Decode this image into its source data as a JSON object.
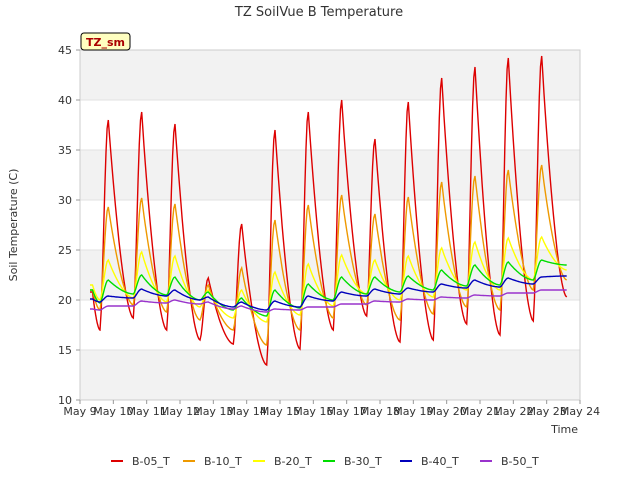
{
  "chart_data": {
    "type": "line",
    "title": "TZ SoilVue B Temperature",
    "xlabel": "Time",
    "ylabel": "Soil Temperature (C)",
    "badge": "TZ_sm",
    "xlim": [
      9,
      24
    ],
    "ylim": [
      10,
      45
    ],
    "x_ticks": [
      9,
      10,
      11,
      12,
      13,
      14,
      15,
      16,
      17,
      18,
      19,
      20,
      21,
      22,
      23,
      24
    ],
    "x_tick_labels": [
      "May 9",
      "May 10",
      "May 11",
      "May 12",
      "May 13",
      "May 14",
      "May 15",
      "May 16",
      "May 17",
      "May 18",
      "May 19",
      "May 20",
      "May 21",
      "May 22",
      "May 23",
      "May 24"
    ],
    "y_ticks": [
      10,
      15,
      20,
      25,
      30,
      35,
      40,
      45
    ],
    "y_tick_labels": [
      "10",
      "15",
      "20",
      "25",
      "30",
      "35",
      "40",
      "45"
    ],
    "grid_bands": true,
    "legend_position": "bottom",
    "series": [
      {
        "name": "B-05_T",
        "color": "#dd0000",
        "days": [
          {
            "start": 9.3,
            "min": 20.8,
            "max": 20.8
          },
          {
            "start": 9.6,
            "min": 17.0,
            "max": 38.0
          },
          {
            "start": 10.6,
            "min": 18.2,
            "max": 38.8
          },
          {
            "start": 11.6,
            "min": 17.0,
            "max": 37.6
          },
          {
            "start": 12.6,
            "min": 16.0,
            "max": 22.2
          },
          {
            "start": 13.6,
            "min": 15.6,
            "max": 27.6
          },
          {
            "start": 14.6,
            "min": 13.5,
            "max": 37.0
          },
          {
            "start": 15.6,
            "min": 15.1,
            "max": 38.8
          },
          {
            "start": 16.6,
            "min": 17.0,
            "max": 40.0
          },
          {
            "start": 17.6,
            "min": 18.4,
            "max": 36.1
          },
          {
            "start": 18.6,
            "min": 15.8,
            "max": 39.8
          },
          {
            "start": 19.6,
            "min": 16.0,
            "max": 42.2
          },
          {
            "start": 20.6,
            "min": 17.6,
            "max": 43.3
          },
          {
            "start": 21.6,
            "min": 16.5,
            "max": 44.2
          },
          {
            "start": 22.6,
            "min": 17.9,
            "max": 44.4
          },
          {
            "start": 23.6,
            "min": 20.3,
            "max": 20.3
          }
        ]
      },
      {
        "name": "B-10_T",
        "color": "#ee9900",
        "days": [
          {
            "start": 9.3,
            "min": 21.0,
            "max": 21.0
          },
          {
            "start": 9.6,
            "min": 19.0,
            "max": 29.3
          },
          {
            "start": 10.6,
            "min": 19.5,
            "max": 30.2
          },
          {
            "start": 11.6,
            "min": 18.8,
            "max": 29.6
          },
          {
            "start": 12.6,
            "min": 18.0,
            "max": 21.5
          },
          {
            "start": 13.6,
            "min": 17.0,
            "max": 23.2
          },
          {
            "start": 14.6,
            "min": 15.5,
            "max": 28.0
          },
          {
            "start": 15.6,
            "min": 17.0,
            "max": 29.5
          },
          {
            "start": 16.6,
            "min": 18.2,
            "max": 30.5
          },
          {
            "start": 17.6,
            "min": 19.5,
            "max": 28.6
          },
          {
            "start": 18.6,
            "min": 18.0,
            "max": 30.3
          },
          {
            "start": 19.6,
            "min": 18.6,
            "max": 31.8
          },
          {
            "start": 20.6,
            "min": 19.3,
            "max": 32.4
          },
          {
            "start": 21.6,
            "min": 19.0,
            "max": 33.0
          },
          {
            "start": 22.6,
            "min": 21.0,
            "max": 33.5
          },
          {
            "start": 23.6,
            "min": 22.0,
            "max": 22.0
          }
        ]
      },
      {
        "name": "B-20_T",
        "color": "#ffff00",
        "days": [
          {
            "start": 9.3,
            "min": 21.5,
            "max": 21.5
          },
          {
            "start": 9.6,
            "min": 20.0,
            "max": 24.0
          },
          {
            "start": 10.6,
            "min": 20.2,
            "max": 24.8
          },
          {
            "start": 11.6,
            "min": 19.8,
            "max": 24.4
          },
          {
            "start": 12.6,
            "min": 19.3,
            "max": 21.0
          },
          {
            "start": 13.6,
            "min": 18.2,
            "max": 21.0
          },
          {
            "start": 14.6,
            "min": 17.8,
            "max": 22.8
          },
          {
            "start": 15.6,
            "min": 18.5,
            "max": 23.6
          },
          {
            "start": 16.6,
            "min": 19.4,
            "max": 24.5
          },
          {
            "start": 17.6,
            "min": 20.6,
            "max": 24.0
          },
          {
            "start": 18.6,
            "min": 20.0,
            "max": 24.4
          },
          {
            "start": 19.6,
            "min": 20.3,
            "max": 25.2
          },
          {
            "start": 20.6,
            "min": 21.0,
            "max": 25.8
          },
          {
            "start": 21.6,
            "min": 21.0,
            "max": 26.2
          },
          {
            "start": 22.6,
            "min": 22.0,
            "max": 26.3
          },
          {
            "start": 23.6,
            "min": 23.0,
            "max": 23.0
          }
        ]
      },
      {
        "name": "B-30_T",
        "color": "#00dd00",
        "days": [
          {
            "start": 9.3,
            "min": 21.0,
            "max": 21.0
          },
          {
            "start": 9.6,
            "min": 19.7,
            "max": 22.0
          },
          {
            "start": 10.6,
            "min": 20.6,
            "max": 22.5
          },
          {
            "start": 11.6,
            "min": 20.5,
            "max": 22.3
          },
          {
            "start": 12.6,
            "min": 20.0,
            "max": 20.8
          },
          {
            "start": 13.6,
            "min": 19.0,
            "max": 20.2
          },
          {
            "start": 14.6,
            "min": 18.4,
            "max": 21.0
          },
          {
            "start": 15.6,
            "min": 19.2,
            "max": 21.6
          },
          {
            "start": 16.6,
            "min": 20.0,
            "max": 22.3
          },
          {
            "start": 17.6,
            "min": 20.6,
            "max": 22.3
          },
          {
            "start": 18.6,
            "min": 20.8,
            "max": 22.4
          },
          {
            "start": 19.6,
            "min": 21.0,
            "max": 23.0
          },
          {
            "start": 20.6,
            "min": 21.4,
            "max": 23.5
          },
          {
            "start": 21.6,
            "min": 21.5,
            "max": 23.8
          },
          {
            "start": 22.6,
            "min": 22.0,
            "max": 24.0
          },
          {
            "start": 23.6,
            "min": 23.5,
            "max": 23.5
          }
        ]
      },
      {
        "name": "B-40_T",
        "color": "#0000bb",
        "days": [
          {
            "start": 9.3,
            "min": 20.1,
            "max": 20.1
          },
          {
            "start": 9.6,
            "min": 19.8,
            "max": 20.4
          },
          {
            "start": 10.6,
            "min": 20.2,
            "max": 21.1
          },
          {
            "start": 11.6,
            "min": 20.4,
            "max": 21.0
          },
          {
            "start": 12.6,
            "min": 20.0,
            "max": 20.3
          },
          {
            "start": 13.6,
            "min": 19.3,
            "max": 19.8
          },
          {
            "start": 14.6,
            "min": 19.0,
            "max": 19.9
          },
          {
            "start": 15.6,
            "min": 19.3,
            "max": 20.4
          },
          {
            "start": 16.6,
            "min": 19.9,
            "max": 20.8
          },
          {
            "start": 17.6,
            "min": 20.4,
            "max": 21.1
          },
          {
            "start": 18.6,
            "min": 20.6,
            "max": 21.2
          },
          {
            "start": 19.6,
            "min": 20.8,
            "max": 21.6
          },
          {
            "start": 20.6,
            "min": 21.2,
            "max": 22.0
          },
          {
            "start": 21.6,
            "min": 21.3,
            "max": 22.2
          },
          {
            "start": 22.6,
            "min": 21.6,
            "max": 22.3
          },
          {
            "start": 23.6,
            "min": 22.4,
            "max": 22.4
          }
        ]
      },
      {
        "name": "B-50_T",
        "color": "#9933cc",
        "days": [
          {
            "start": 9.3,
            "min": 19.1,
            "max": 19.1
          },
          {
            "start": 9.6,
            "min": 19.0,
            "max": 19.4
          },
          {
            "start": 10.6,
            "min": 19.4,
            "max": 19.9
          },
          {
            "start": 11.6,
            "min": 19.7,
            "max": 20.0
          },
          {
            "start": 12.6,
            "min": 19.6,
            "max": 19.8
          },
          {
            "start": 13.6,
            "min": 19.1,
            "max": 19.4
          },
          {
            "start": 14.6,
            "min": 18.8,
            "max": 19.1
          },
          {
            "start": 15.6,
            "min": 19.0,
            "max": 19.3
          },
          {
            "start": 16.6,
            "min": 19.3,
            "max": 19.6
          },
          {
            "start": 17.6,
            "min": 19.6,
            "max": 19.9
          },
          {
            "start": 18.6,
            "min": 19.8,
            "max": 20.1
          },
          {
            "start": 19.6,
            "min": 20.0,
            "max": 20.3
          },
          {
            "start": 20.6,
            "min": 20.2,
            "max": 20.5
          },
          {
            "start": 21.6,
            "min": 20.4,
            "max": 20.7
          },
          {
            "start": 22.6,
            "min": 20.7,
            "max": 21.0
          },
          {
            "start": 23.6,
            "min": 21.0,
            "max": 21.0
          }
        ]
      }
    ]
  }
}
